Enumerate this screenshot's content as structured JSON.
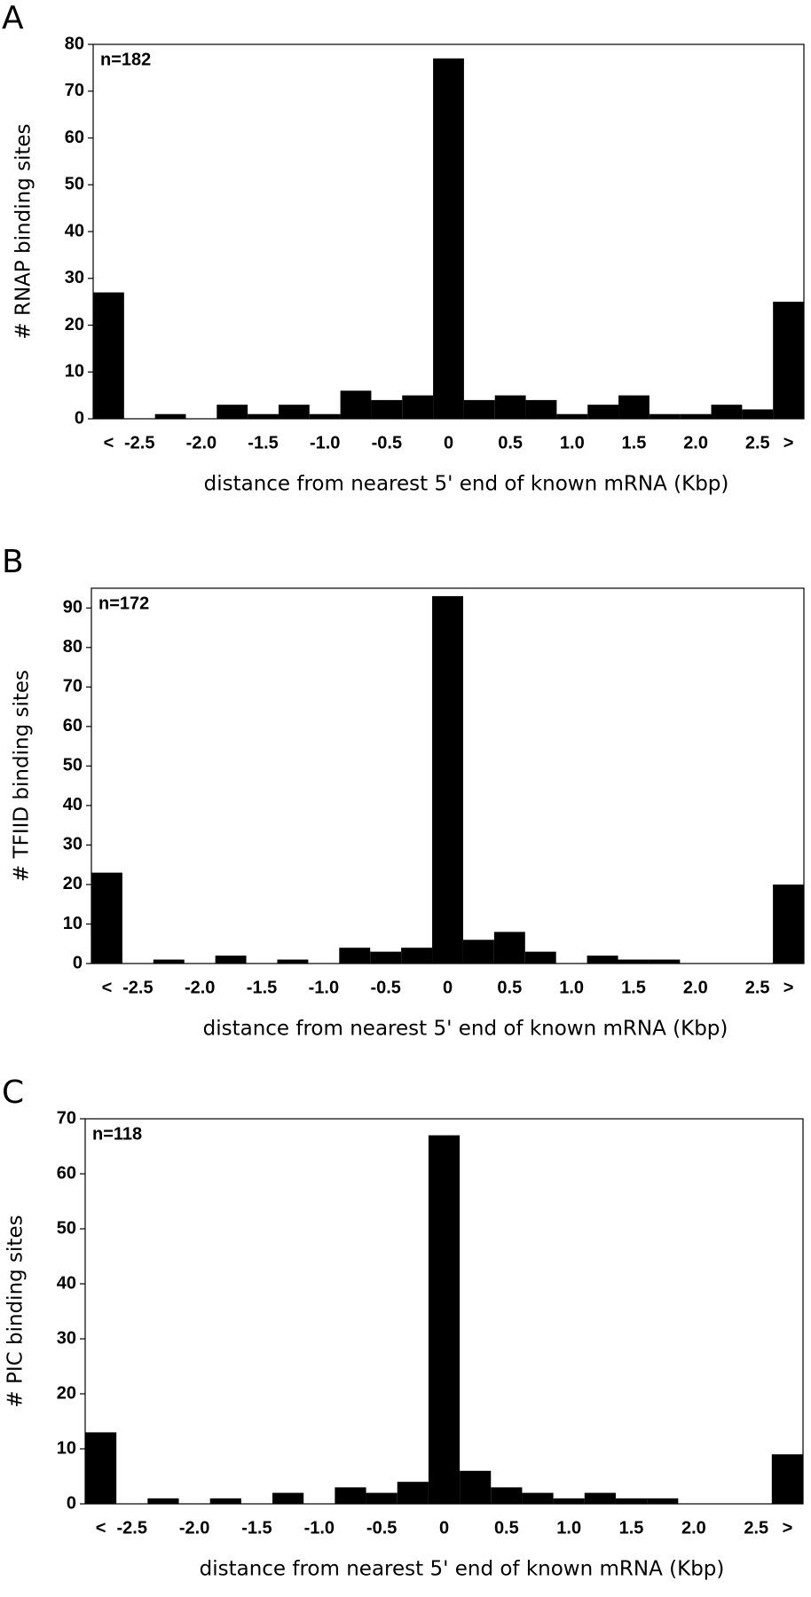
{
  "chart_data": [
    {
      "type": "bar",
      "panel": "A",
      "annotation": "n=182",
      "ylabel": "# RNAP binding sites",
      "xlabel": "distance from nearest 5' end of known mRNA (Kbp)",
      "categories": [
        "<",
        "-2.5",
        null,
        "-2.0",
        null,
        "-1.5",
        null,
        "-1.0",
        null,
        "-0.5",
        null,
        "0",
        null,
        "0.5",
        null,
        "1.0",
        null,
        "1.5",
        null,
        "2.0",
        null,
        "2.5",
        ">"
      ],
      "values": [
        27,
        0,
        1,
        0,
        3,
        1,
        3,
        1,
        6,
        4,
        5,
        77,
        4,
        5,
        4,
        1,
        3,
        5,
        1,
        1,
        3,
        2,
        25
      ],
      "color": "#000000",
      "ylim": [
        0,
        80
      ],
      "yticks": [
        0,
        10,
        20,
        30,
        40,
        50,
        60,
        70,
        80
      ]
    },
    {
      "type": "bar",
      "panel": "B",
      "annotation": "n=172",
      "ylabel": "# TFIID binding sites",
      "xlabel": "distance from nearest 5' end of known mRNA (Kbp)",
      "categories": [
        "<",
        "-2.5",
        null,
        "-2.0",
        null,
        "-1.5",
        null,
        "-1.0",
        null,
        "-0.5",
        null,
        "0",
        null,
        "0.5",
        null,
        "1.0",
        null,
        "1.5",
        null,
        "2.0",
        null,
        "2.5",
        ">"
      ],
      "values": [
        23,
        0,
        1,
        0,
        2,
        0,
        1,
        0,
        4,
        3,
        4,
        93,
        6,
        8,
        3,
        0,
        2,
        1,
        1,
        0,
        0,
        0,
        20
      ],
      "color": "#000000",
      "ylim": [
        0,
        95
      ],
      "yticks": [
        0,
        10,
        20,
        30,
        40,
        50,
        60,
        70,
        80,
        90
      ]
    },
    {
      "type": "bar",
      "panel": "C",
      "annotation": "n=118",
      "ylabel": "# PIC binding sites",
      "xlabel": "distance from nearest 5' end of known mRNA (Kbp)",
      "categories": [
        "<",
        "-2.5",
        null,
        "-2.0",
        null,
        "-1.5",
        null,
        "-1.0",
        null,
        "-0.5",
        null,
        "0",
        null,
        "0.5",
        null,
        "1.0",
        null,
        "1.5",
        null,
        "2.0",
        null,
        "2.5",
        ">"
      ],
      "values": [
        13,
        0,
        1,
        0,
        1,
        0,
        2,
        0,
        3,
        2,
        4,
        67,
        6,
        3,
        2,
        1,
        2,
        1,
        1,
        0,
        0,
        0,
        9
      ],
      "color": "#000000",
      "ylim": [
        0,
        70
      ],
      "yticks": [
        0,
        10,
        20,
        30,
        40,
        50,
        60,
        70
      ]
    }
  ]
}
